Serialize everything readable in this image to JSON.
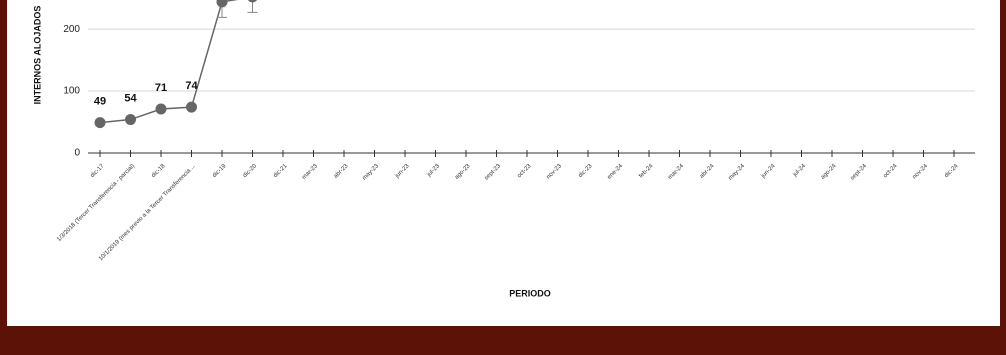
{
  "chart_data": {
    "type": "line",
    "y_label": "INTERNOS ALOJADOS",
    "x_label": "PERIODO",
    "categories": [
      "dic-17",
      "1/3/2018 (Tercer Transferencia - parcial)",
      "dic-18",
      "10/1/2019 (mes previo a la Tercer Transferencia ...",
      "dic-19",
      "dic-20",
      "dic-21",
      "mar-23",
      "abr-23",
      "may-23",
      "jun-23",
      "jul-23",
      "ago-23",
      "sept-23",
      "oct-23",
      "nov-23",
      "dic-23",
      "ene-24",
      "feb-24",
      "mar-24",
      "abr-24",
      "may-24",
      "jun-24",
      "jul-24",
      "ago-24",
      "sept-24",
      "oct-24",
      "nov-24",
      "dic-24"
    ],
    "values": [
      49,
      54,
      71,
      74,
      244,
      252,
      null,
      null,
      null,
      null,
      null,
      null,
      null,
      null,
      null,
      null,
      null,
      null,
      null,
      null,
      null,
      null,
      null,
      null,
      null,
      null,
      null,
      null,
      null
    ],
    "errors": [
      null,
      null,
      null,
      null,
      25,
      25,
      null,
      null,
      null,
      null,
      null,
      null,
      null,
      null,
      null,
      null,
      null,
      null,
      null,
      null,
      null,
      null,
      null,
      null,
      null,
      null,
      null,
      null,
      null
    ],
    "color": "#666666",
    "ylim": [
      0,
      247
    ],
    "yticks": [
      0,
      100,
      200
    ],
    "grid": true
  }
}
